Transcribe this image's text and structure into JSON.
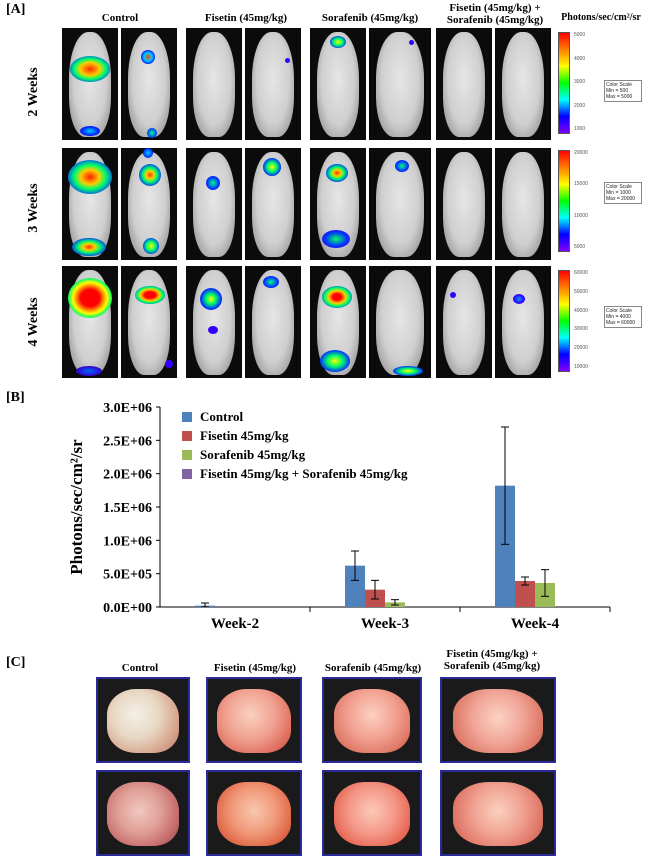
{
  "panels": {
    "a_label": "[A]",
    "b_label": "[B]",
    "c_label": "[C]"
  },
  "panel_a": {
    "groups": [
      "Control",
      "Fisetin (45mg/kg)",
      "Sorafenib (45mg/kg)",
      "Fisetin (45mg/kg) +\nSorafenib (45mg/kg)"
    ],
    "scale_header": "Photons/sec/cm²/sr",
    "rows": [
      {
        "label": "2 Weeks",
        "scale_box": [
          "Color Scale",
          "Min = 500",
          "Max = 5000"
        ],
        "ticks": [
          "5000",
          "4000",
          "3000",
          "2000",
          "1000"
        ]
      },
      {
        "label": "3 Weeks",
        "scale_box": [
          "Color Scale",
          "Min = 1000",
          "Max = 20000"
        ],
        "ticks": [
          "20000",
          "15000",
          "10000",
          "5000"
        ]
      },
      {
        "label": "4 Weeks",
        "scale_box": [
          "Color Scale",
          "Min = 4000",
          "Max = 60000"
        ],
        "ticks": [
          "60000",
          "50000",
          "40000",
          "30000",
          "20000",
          "10000"
        ]
      }
    ]
  },
  "panel_c": {
    "groups": [
      "Control",
      "Fisetin (45mg/kg)",
      "Sorafenib (45mg/kg)",
      "Fisetin (45mg/kg) +\nSorafenib (45mg/kg)"
    ]
  },
  "colors": {
    "control": "#4f81bd",
    "fisetin": "#c0504d",
    "sorafenib": "#9bbb59",
    "combo": "#8064a2",
    "lung_border": "#2a2a9a"
  },
  "chart_data": {
    "type": "bar",
    "title": "",
    "xlabel": "",
    "ylabel": "Photons/sec/cm²/sr",
    "categories": [
      "Week-2",
      "Week-3",
      "Week-4"
    ],
    "ylim": [
      0,
      3000000
    ],
    "yticks": [
      "0.0E+00",
      "5.0E+05",
      "1.0E+06",
      "1.5E+06",
      "2.0E+06",
      "2.5E+06",
      "3.0E+06"
    ],
    "legend_placement": "top-left",
    "series": [
      {
        "name": "Control",
        "color": "#4f81bd",
        "values": [
          20000,
          620000,
          1820000
        ],
        "errors": [
          40000,
          220000,
          880000
        ]
      },
      {
        "name": "Fisetin 45mg/kg",
        "color": "#c0504d",
        "values": [
          0,
          260000,
          390000
        ],
        "errors": [
          0,
          140000,
          60000
        ]
      },
      {
        "name": "Sorafenib 45mg/kg",
        "color": "#9bbb59",
        "values": [
          0,
          70000,
          360000
        ],
        "errors": [
          0,
          40000,
          200000
        ]
      },
      {
        "name": "Fisetin 45mg/kg + Sorafenib 45mg/kg",
        "color": "#8064a2",
        "values": [
          0,
          0,
          0
        ],
        "errors": [
          0,
          0,
          0
        ]
      }
    ]
  }
}
